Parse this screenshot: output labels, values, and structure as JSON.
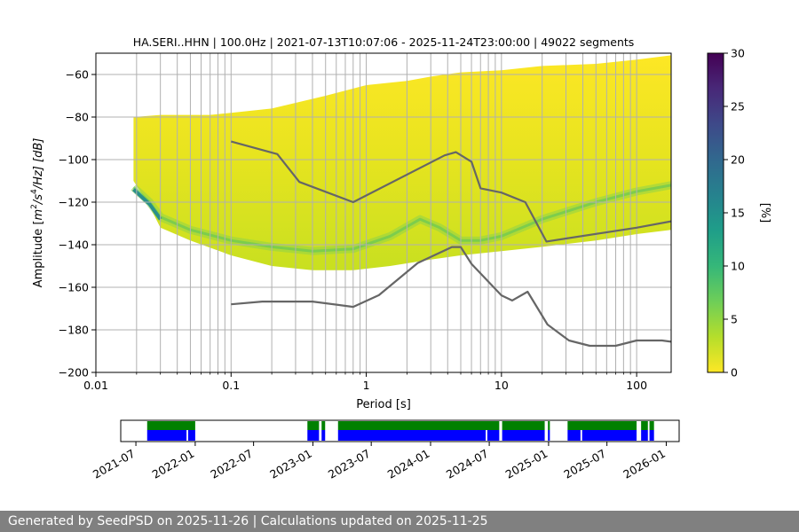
{
  "chart_data": {
    "type": "heatmap",
    "title": "HA.SERI..HHN | 100.0Hz | 2021-07-13T10:07:06 - 2025-11-24T23:00:00 | 49022 segments",
    "xlabel": "Period [s]",
    "ylabel_parts": [
      "Amplitude [",
      "m",
      "2",
      "/s",
      "4",
      "/Hz] [dB]"
    ],
    "x_scale": "log",
    "xlim": [
      0.01,
      180
    ],
    "ylim": [
      -200,
      -50
    ],
    "x_ticks": [
      {
        "value": 0.01,
        "label": "0.01"
      },
      {
        "value": 0.1,
        "label": "0.1"
      },
      {
        "value": 1,
        "label": "1"
      },
      {
        "value": 10,
        "label": "10"
      },
      {
        "value": 100,
        "label": "100"
      }
    ],
    "y_ticks": [
      {
        "value": -60,
        "label": "−60"
      },
      {
        "value": -80,
        "label": "−80"
      },
      {
        "value": -100,
        "label": "−100"
      },
      {
        "value": -120,
        "label": "−120"
      },
      {
        "value": -140,
        "label": "−140"
      },
      {
        "value": -160,
        "label": "−160"
      },
      {
        "value": -180,
        "label": "−180"
      },
      {
        "value": -200,
        "label": "−200"
      }
    ],
    "grid_periods": [
      0.02,
      0.03,
      0.04,
      0.05,
      0.06,
      0.07,
      0.08,
      0.09,
      0.2,
      0.3,
      0.4,
      0.5,
      0.6,
      0.7,
      0.8,
      0.9,
      2,
      3,
      4,
      5,
      6,
      7,
      8,
      9,
      20,
      30,
      40,
      50,
      60,
      70,
      80,
      90
    ],
    "density": {
      "upper_bound": [
        [
          0.019,
          -80
        ],
        [
          0.03,
          -79
        ],
        [
          0.05,
          -79
        ],
        [
          0.07,
          -79
        ],
        [
          0.1,
          -78
        ],
        [
          0.2,
          -76
        ],
        [
          0.5,
          -70
        ],
        [
          1,
          -65
        ],
        [
          2,
          -63
        ],
        [
          3,
          -61
        ],
        [
          5,
          -59
        ],
        [
          10,
          -58
        ],
        [
          20,
          -56
        ],
        [
          50,
          -55
        ],
        [
          100,
          -53
        ],
        [
          180,
          -51
        ]
      ],
      "lower_bound": [
        [
          0.019,
          -110
        ],
        [
          0.025,
          -122
        ],
        [
          0.03,
          -132
        ],
        [
          0.05,
          -138
        ],
        [
          0.1,
          -145
        ],
        [
          0.2,
          -150
        ],
        [
          0.4,
          -152
        ],
        [
          0.8,
          -152
        ],
        [
          1.5,
          -150
        ],
        [
          3,
          -147
        ],
        [
          5,
          -145
        ],
        [
          10,
          -143
        ],
        [
          20,
          -141
        ],
        [
          50,
          -138
        ],
        [
          100,
          -135
        ],
        [
          180,
          -133
        ]
      ],
      "mode_curve": [
        [
          0.019,
          -113
        ],
        [
          0.025,
          -120
        ],
        [
          0.03,
          -127
        ],
        [
          0.05,
          -133
        ],
        [
          0.1,
          -138
        ],
        [
          0.2,
          -141
        ],
        [
          0.4,
          -143
        ],
        [
          0.8,
          -142
        ],
        [
          1.5,
          -136
        ],
        [
          2.5,
          -128
        ],
        [
          3.5,
          -132
        ],
        [
          5,
          -138
        ],
        [
          7,
          -138
        ],
        [
          10,
          -136
        ],
        [
          20,
          -128
        ],
        [
          50,
          -120
        ],
        [
          100,
          -115
        ],
        [
          180,
          -112
        ]
      ],
      "lower_edge_teal": [
        [
          0.019,
          -114
        ],
        [
          0.025,
          -121
        ],
        [
          0.03,
          -128
        ]
      ]
    },
    "noise_models": [
      {
        "name": "NHNM",
        "points": [
          [
            0.1,
            -91.5
          ],
          [
            0.22,
            -97.4
          ],
          [
            0.32,
            -110.5
          ],
          [
            0.8,
            -120
          ],
          [
            3.8,
            -98
          ],
          [
            4.6,
            -96.5
          ],
          [
            6,
            -101
          ],
          [
            7,
            -113.5
          ],
          [
            10,
            -115.5
          ],
          [
            15,
            -120
          ],
          [
            21.5,
            -138.5
          ],
          [
            100,
            -132
          ],
          [
            180,
            -129
          ]
        ]
      },
      {
        "name": "NLNM",
        "points": [
          [
            0.1,
            -168
          ],
          [
            0.17,
            -166.7
          ],
          [
            0.4,
            -166.7
          ],
          [
            0.8,
            -169.2
          ],
          [
            1.24,
            -163.7
          ],
          [
            2.4,
            -148.6
          ],
          [
            4.3,
            -141.1
          ],
          [
            5,
            -141.1
          ],
          [
            6,
            -149
          ],
          [
            10,
            -163.8
          ],
          [
            12,
            -166.2
          ],
          [
            15.6,
            -162.1
          ],
          [
            21.9,
            -177.5
          ],
          [
            31.6,
            -185
          ],
          [
            45,
            -187.5
          ],
          [
            70,
            -187.5
          ],
          [
            100,
            -185
          ],
          [
            154,
            -185
          ],
          [
            180,
            -185.6
          ]
        ]
      }
    ],
    "colorbar": {
      "label": "[%]",
      "range": [
        0,
        30
      ],
      "ticks": [
        {
          "value": 0,
          "label": "0"
        },
        {
          "value": 5,
          "label": "5"
        },
        {
          "value": 10,
          "label": "10"
        },
        {
          "value": 15,
          "label": "15"
        },
        {
          "value": 20,
          "label": "20"
        },
        {
          "value": 25,
          "label": "25"
        },
        {
          "value": 30,
          "label": "30"
        }
      ],
      "colors": [
        "#fde725",
        "#b5de2b",
        "#6ece58",
        "#35b779",
        "#1f9e89",
        "#26828e",
        "#31688e",
        "#3e4989",
        "#482878",
        "#440154"
      ]
    },
    "availability": {
      "date_range": [
        "2021-05-15",
        "2026-02-10"
      ],
      "green": [
        [
          "2021-08-05",
          "2022-01-01"
        ],
        [
          "2022-12-15",
          "2023-01-20"
        ],
        [
          "2023-01-28",
          "2023-02-08"
        ],
        [
          "2023-03-20",
          "2024-08-01"
        ],
        [
          "2024-08-10",
          "2024-12-20"
        ],
        [
          "2024-12-30",
          "2025-01-05"
        ],
        [
          "2025-03-01",
          "2025-10-01"
        ],
        [
          "2025-10-15",
          "2025-11-05"
        ],
        [
          "2025-11-10",
          "2025-11-24"
        ]
      ],
      "blue": [
        [
          "2021-08-05",
          "2021-12-05"
        ],
        [
          "2021-12-10",
          "2022-01-01"
        ],
        [
          "2022-12-15",
          "2023-01-20"
        ],
        [
          "2023-01-28",
          "2023-02-08"
        ],
        [
          "2023-03-20",
          "2024-06-20"
        ],
        [
          "2024-06-25",
          "2024-08-01"
        ],
        [
          "2024-08-10",
          "2024-12-20"
        ],
        [
          "2024-12-30",
          "2025-01-05"
        ],
        [
          "2025-03-01",
          "2025-04-10"
        ],
        [
          "2025-04-15",
          "2025-10-01"
        ],
        [
          "2025-10-15",
          "2025-11-05"
        ],
        [
          "2025-11-10",
          "2025-11-24"
        ]
      ],
      "ticks": [
        {
          "date": "2021-07-01",
          "label": "2021-07"
        },
        {
          "date": "2022-01-01",
          "label": "2022-01"
        },
        {
          "date": "2022-07-01",
          "label": "2022-07"
        },
        {
          "date": "2023-01-01",
          "label": "2023-01"
        },
        {
          "date": "2023-07-01",
          "label": "2023-07"
        },
        {
          "date": "2024-01-01",
          "label": "2024-01"
        },
        {
          "date": "2024-07-01",
          "label": "2024-07"
        },
        {
          "date": "2025-01-01",
          "label": "2025-01"
        },
        {
          "date": "2025-07-01",
          "label": "2025-07"
        },
        {
          "date": "2026-01-01",
          "label": "2026-01"
        }
      ]
    }
  },
  "footer": {
    "text": "Generated by SeedPSD on 2025-11-26 | Calculations updated on 2025-11-25"
  }
}
